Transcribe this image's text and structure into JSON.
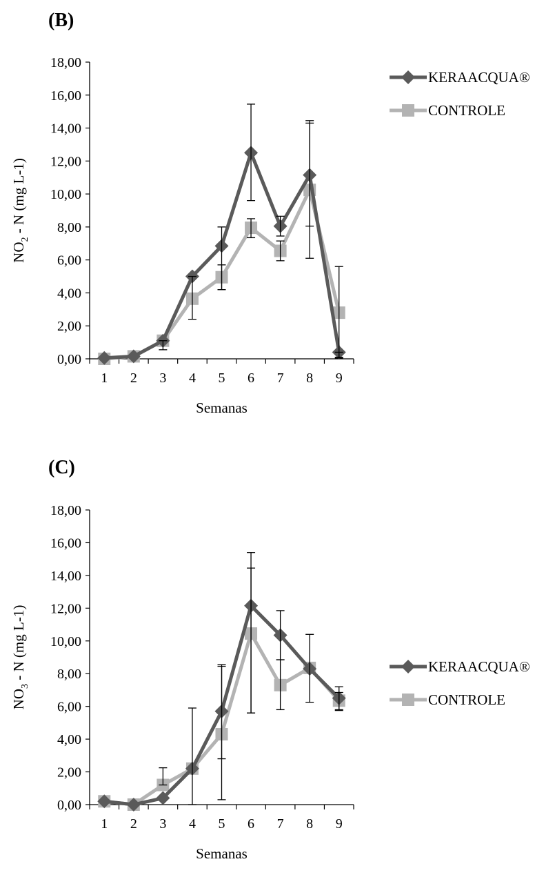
{
  "chart_data": [
    {
      "panel_label": "(B)",
      "type": "line",
      "xlabel": "Semanas",
      "ylabel_main": "NO",
      "ylabel_sub": "2",
      "ylabel_rest": " - N (mg L-1)",
      "categories": [
        "1",
        "2",
        "3",
        "4",
        "5",
        "6",
        "7",
        "8",
        "9"
      ],
      "ylim": [
        0,
        18
      ],
      "yticks": [
        "0,00",
        "2,00",
        "4,00",
        "6,00",
        "8,00",
        "10,00",
        "12,00",
        "14,00",
        "16,00",
        "18,00"
      ],
      "legend_position": "top-right",
      "series": [
        {
          "name": "KERAACQUA®",
          "color": "#5a5a5a",
          "marker": "diamond",
          "values": [
            0.05,
            0.15,
            1.1,
            5.0,
            6.85,
            12.5,
            8.05,
            11.15,
            0.4
          ],
          "err_low": [
            0,
            0,
            0.55,
            2.4,
            4.2,
            9.6,
            7.45,
            6.1,
            0.1
          ],
          "err_high": [
            0,
            0,
            1.1,
            5.0,
            8.0,
            15.45,
            8.65,
            14.45,
            0.4
          ]
        },
        {
          "name": "CONTROLE",
          "color": "#b3b3b3",
          "marker": "square",
          "values": [
            0.0,
            0.15,
            1.1,
            3.65,
            4.95,
            7.95,
            6.55,
            10.25,
            2.8
          ],
          "err_low": [
            0,
            0,
            1.1,
            3.65,
            4.2,
            7.35,
            5.95,
            8.05,
            0.05
          ],
          "err_high": [
            0,
            0,
            1.1,
            3.65,
            5.7,
            8.5,
            7.15,
            14.3,
            5.6
          ]
        }
      ]
    },
    {
      "panel_label": "(C)",
      "type": "line",
      "xlabel": "Semanas",
      "ylabel_main": "NO",
      "ylabel_sub": "3",
      "ylabel_rest": " - N (mg L-1)",
      "categories": [
        "1",
        "2",
        "3",
        "4",
        "5",
        "6",
        "7",
        "8",
        "9"
      ],
      "ylim": [
        0,
        18
      ],
      "yticks": [
        "0,00",
        "2,00",
        "4,00",
        "6,00",
        "8,00",
        "10,00",
        "12,00",
        "14,00",
        "16,00",
        "18,00"
      ],
      "legend_position": "right",
      "series": [
        {
          "name": "KERAACQUA®",
          "color": "#5a5a5a",
          "marker": "diamond",
          "values": [
            0.2,
            0.0,
            0.4,
            2.2,
            5.7,
            12.15,
            10.35,
            8.3,
            6.5
          ],
          "err_low": [
            0,
            0,
            0.4,
            0,
            2.8,
            5.6,
            8.85,
            6.25,
            5.8
          ],
          "err_high": [
            0,
            0,
            0.4,
            5.9,
            8.55,
            15.4,
            11.85,
            10.4,
            7.2
          ]
        },
        {
          "name": "CONTROLE",
          "color": "#b3b3b3",
          "marker": "square",
          "values": [
            0.2,
            0.0,
            1.2,
            2.2,
            4.3,
            10.45,
            7.3,
            8.35,
            6.35
          ],
          "err_low": [
            0,
            0,
            1.2,
            2.2,
            0.3,
            5.6,
            5.8,
            8.35,
            5.75
          ],
          "err_high": [
            0,
            0,
            2.25,
            2.2,
            8.45,
            14.45,
            8.85,
            8.35,
            6.85
          ]
        }
      ]
    }
  ]
}
